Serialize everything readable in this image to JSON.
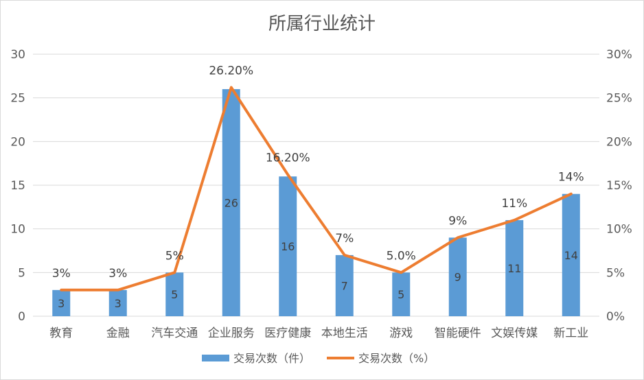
{
  "chart_data": {
    "type": "bar",
    "title": "所属行业统计",
    "categories": [
      "教育",
      "金融",
      "汽车交通",
      "企业服务",
      "医疗健康",
      "本地生活",
      "游戏",
      "智能硬件",
      "文娱传媒",
      "新工业"
    ],
    "series": [
      {
        "name": "交易次数（件）",
        "type": "bar",
        "axis": "left",
        "values": [
          3,
          3,
          5,
          26,
          16,
          7,
          5,
          9,
          11,
          14
        ],
        "labels": [
          "3",
          "3",
          "5",
          "26",
          "16",
          "7",
          "5",
          "9",
          "11",
          "14"
        ]
      },
      {
        "name": "交易次数（%）",
        "type": "line",
        "axis": "right",
        "values": [
          3,
          3,
          5,
          26.2,
          16.2,
          7,
          5.0,
          9,
          11,
          14
        ],
        "labels": [
          "3%",
          "3%",
          "5%",
          "26.20%",
          "16.20%",
          "7%",
          "5.0%",
          "9%",
          "11%",
          "14%"
        ]
      }
    ],
    "y_left": {
      "min": 0,
      "max": 30,
      "ticks": [
        "0",
        "5",
        "10",
        "15",
        "20",
        "25",
        "30"
      ]
    },
    "y_right": {
      "min": 0,
      "max": 30,
      "ticks": [
        "0%",
        "5%",
        "10%",
        "15%",
        "20%",
        "25%",
        "30%"
      ]
    },
    "legend": {
      "position": "bottom",
      "items": [
        "交易次数（件）",
        "交易次数（%）"
      ]
    },
    "colors": {
      "bar": "#5b9bd5",
      "line": "#ed7d31",
      "grid": "#d9d9d9",
      "text": "#595959",
      "label": "#404040"
    }
  }
}
